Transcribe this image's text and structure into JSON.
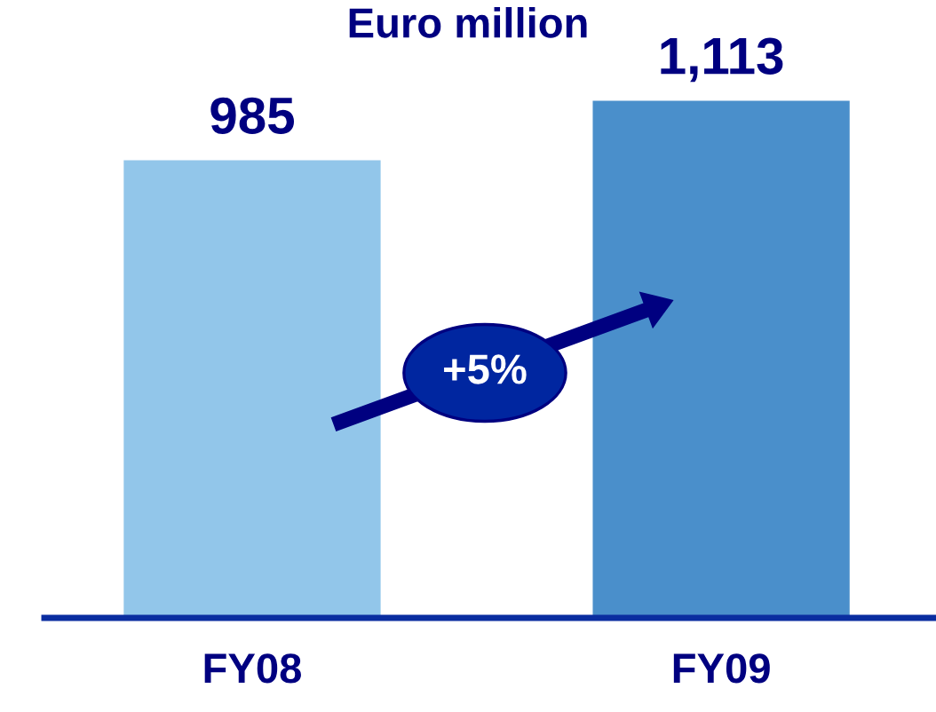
{
  "chart_data": {
    "type": "bar",
    "title": "Euro million",
    "categories": [
      "FY08",
      "FY09"
    ],
    "values": [
      985,
      1113
    ],
    "value_labels": [
      "985",
      "1,113"
    ],
    "colors": [
      "#92c6ea",
      "#4a8fcb"
    ],
    "annotations": [
      "+5%"
    ]
  }
}
